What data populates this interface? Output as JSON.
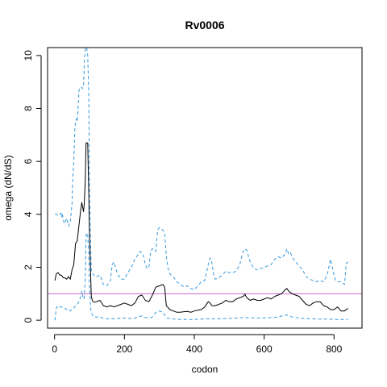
{
  "chart_data": {
    "type": "line",
    "title": "Rv0006",
    "xlabel": "codon",
    "ylabel": "omega (dN/dS)",
    "xlim": [
      -20,
      880
    ],
    "ylim": [
      -0.3,
      10.3
    ],
    "x_ticks": [
      0,
      200,
      400,
      600,
      800
    ],
    "x_tick_labels": [
      "0",
      "200",
      "400",
      "600",
      "800"
    ],
    "y_ticks": [
      0,
      2,
      4,
      6,
      8,
      10
    ],
    "y_tick_labels": [
      "0",
      "2",
      "4",
      "6",
      "8",
      "10"
    ],
    "reference_line": {
      "y": 1,
      "color": "#cc66cc"
    },
    "colors": {
      "omega": "#000000",
      "ci": "#3399dd"
    },
    "series": [
      {
        "key": "omega",
        "style": "solid",
        "x": [
          1,
          5,
          10,
          15,
          20,
          25,
          30,
          35,
          40,
          45,
          50,
          55,
          60,
          65,
          70,
          75,
          78,
          80,
          83,
          85,
          88,
          90,
          92,
          95,
          98,
          100,
          103,
          105,
          108,
          110,
          115,
          120,
          130,
          140,
          150,
          160,
          170,
          180,
          190,
          200,
          210,
          220,
          230,
          240,
          250,
          260,
          270,
          280,
          290,
          300,
          310,
          315,
          320,
          330,
          340,
          350,
          360,
          370,
          380,
          390,
          400,
          410,
          420,
          430,
          440,
          445,
          450,
          460,
          470,
          480,
          490,
          500,
          510,
          520,
          530,
          540,
          545,
          550,
          560,
          570,
          580,
          590,
          600,
          610,
          620,
          630,
          640,
          650,
          660,
          665,
          670,
          680,
          690,
          700,
          710,
          720,
          730,
          740,
          750,
          760,
          770,
          780,
          790,
          800,
          810,
          820,
          830,
          840
        ],
        "y": [
          1.5,
          1.75,
          1.8,
          1.7,
          1.7,
          1.6,
          1.6,
          1.55,
          1.65,
          1.55,
          1.9,
          2.1,
          2.9,
          3.0,
          3.6,
          4.2,
          4.45,
          4.3,
          4.1,
          4.4,
          5.3,
          6.7,
          6.7,
          6.7,
          4.8,
          3.2,
          1.9,
          0.9,
          0.75,
          0.7,
          0.68,
          0.7,
          0.75,
          0.55,
          0.5,
          0.55,
          0.5,
          0.55,
          0.6,
          0.65,
          0.6,
          0.55,
          0.65,
          0.9,
          0.95,
          0.75,
          0.7,
          0.95,
          1.25,
          1.3,
          1.35,
          1.25,
          0.55,
          0.4,
          0.35,
          0.3,
          0.3,
          0.32,
          0.33,
          0.3,
          0.35,
          0.38,
          0.4,
          0.5,
          0.7,
          0.65,
          0.55,
          0.55,
          0.6,
          0.65,
          0.75,
          0.7,
          0.7,
          0.8,
          0.85,
          0.9,
          0.98,
          0.85,
          0.75,
          0.8,
          0.75,
          0.75,
          0.8,
          0.85,
          0.8,
          0.9,
          0.95,
          1.0,
          1.15,
          1.2,
          1.1,
          1.0,
          0.95,
          0.9,
          0.75,
          0.6,
          0.55,
          0.65,
          0.7,
          0.7,
          0.55,
          0.5,
          0.4,
          0.4,
          0.5,
          0.35,
          0.35,
          0.45
        ]
      },
      {
        "key": "ci_upper",
        "style": "dashed",
        "x": [
          1,
          5,
          10,
          15,
          18,
          20,
          22,
          25,
          28,
          30,
          35,
          40,
          45,
          50,
          52,
          55,
          58,
          60,
          62,
          65,
          68,
          70,
          72,
          75,
          78,
          80,
          83,
          85,
          88,
          90,
          92,
          95,
          98,
          100,
          103,
          105,
          108,
          110,
          115,
          120,
          130,
          140,
          150,
          155,
          160,
          165,
          170,
          180,
          190,
          200,
          210,
          220,
          230,
          240,
          245,
          250,
          255,
          260,
          265,
          270,
          275,
          280,
          290,
          295,
          300,
          305,
          310,
          315,
          320,
          325,
          330,
          340,
          350,
          360,
          370,
          380,
          390,
          400,
          410,
          420,
          430,
          440,
          445,
          450,
          455,
          460,
          470,
          480,
          490,
          500,
          510,
          520,
          530,
          540,
          545,
          550,
          560,
          570,
          580,
          590,
          600,
          610,
          620,
          630,
          640,
          650,
          660,
          665,
          670,
          675,
          680,
          690,
          700,
          710,
          720,
          730,
          740,
          750,
          760,
          770,
          780,
          790,
          800,
          805,
          810,
          820,
          830,
          835,
          840
        ],
        "y": [
          4.0,
          4.0,
          3.95,
          4.0,
          4.05,
          3.9,
          4.05,
          3.8,
          3.65,
          3.7,
          3.85,
          3.55,
          3.7,
          4.4,
          5.3,
          6.0,
          7.2,
          7.45,
          7.6,
          7.5,
          8.2,
          8.7,
          8.75,
          8.8,
          8.8,
          8.75,
          8.85,
          9.7,
          10.3,
          10.3,
          10.3,
          10.0,
          8.5,
          5.0,
          3.0,
          1.9,
          1.8,
          1.75,
          1.65,
          1.65,
          1.7,
          1.35,
          1.3,
          1.4,
          1.5,
          2.1,
          2.2,
          1.75,
          1.55,
          1.55,
          1.8,
          2.0,
          2.3,
          2.5,
          2.6,
          2.55,
          2.4,
          2.1,
          1.95,
          2.0,
          2.6,
          2.7,
          2.6,
          3.4,
          3.5,
          3.45,
          3.4,
          3.3,
          2.4,
          1.95,
          1.75,
          1.65,
          1.45,
          1.35,
          1.25,
          1.3,
          1.2,
          1.15,
          1.3,
          1.45,
          1.5,
          2.1,
          2.35,
          2.2,
          1.75,
          1.55,
          1.6,
          1.7,
          1.85,
          1.8,
          1.8,
          1.85,
          2.1,
          2.6,
          2.7,
          2.65,
          2.2,
          1.95,
          1.9,
          1.95,
          2.0,
          2.05,
          2.1,
          2.3,
          2.4,
          2.35,
          2.5,
          2.7,
          2.5,
          2.55,
          2.4,
          2.2,
          2.05,
          1.9,
          1.65,
          1.55,
          1.5,
          1.45,
          1.5,
          1.45,
          1.7,
          2.3,
          1.7,
          1.5,
          1.45,
          1.45,
          1.35,
          2.15,
          2.2
        ]
      },
      {
        "key": "ci_lower",
        "style": "dashed",
        "x": [
          1,
          5,
          10,
          15,
          20,
          25,
          30,
          35,
          40,
          45,
          50,
          55,
          60,
          65,
          70,
          75,
          78,
          80,
          83,
          85,
          88,
          90,
          92,
          95,
          98,
          100,
          103,
          105,
          108,
          110,
          115,
          120,
          130,
          140,
          150,
          160,
          170,
          180,
          190,
          200,
          210,
          220,
          230,
          240,
          250,
          260,
          270,
          280,
          290,
          300,
          310,
          320,
          330,
          340,
          360,
          380,
          400,
          420,
          440,
          460,
          480,
          500,
          520,
          540,
          560,
          580,
          600,
          620,
          640,
          660,
          670,
          680,
          700,
          720,
          740,
          760,
          780,
          800,
          820,
          840
        ],
        "y": [
          0.0,
          0.45,
          0.55,
          0.5,
          0.5,
          0.45,
          0.45,
          0.4,
          0.42,
          0.35,
          0.4,
          0.45,
          0.55,
          0.6,
          0.7,
          0.9,
          1.1,
          0.95,
          0.8,
          0.85,
          1.6,
          3.2,
          3.3,
          3.2,
          2.5,
          1.2,
          0.5,
          0.3,
          0.2,
          0.15,
          0.12,
          0.12,
          0.13,
          0.06,
          0.05,
          0.06,
          0.05,
          0.06,
          0.08,
          0.08,
          0.07,
          0.06,
          0.08,
          0.14,
          0.16,
          0.1,
          0.09,
          0.12,
          0.3,
          0.35,
          0.3,
          0.1,
          0.06,
          0.04,
          0.03,
          0.03,
          0.03,
          0.04,
          0.05,
          0.05,
          0.06,
          0.07,
          0.08,
          0.1,
          0.09,
          0.08,
          0.09,
          0.1,
          0.12,
          0.2,
          0.18,
          0.12,
          0.08,
          0.06,
          0.05,
          0.04,
          0.04,
          0.03,
          0.03,
          0.03
        ]
      }
    ]
  }
}
